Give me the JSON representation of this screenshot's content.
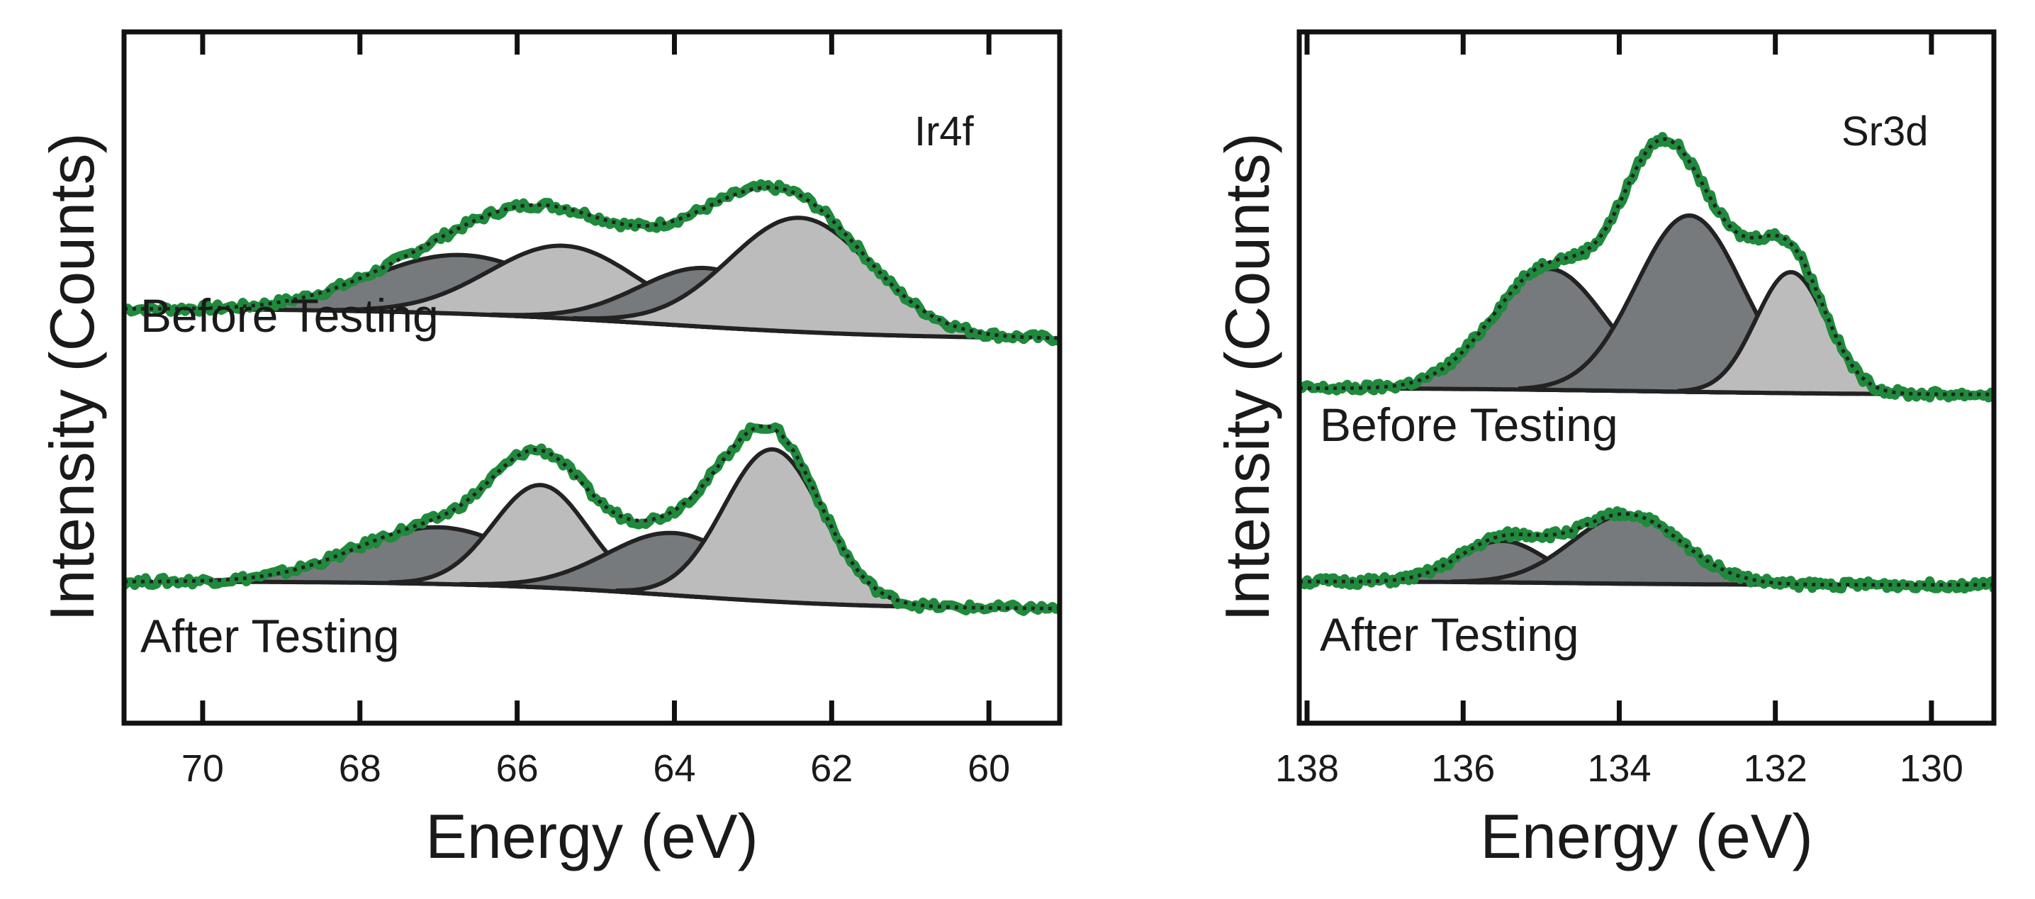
{
  "colors": {
    "data_curve": "#1f8a3c",
    "envelope": "#222222",
    "peak_dark": "#777a7c",
    "peak_light": "#bcbcbc",
    "frame": "#111111"
  },
  "chart_data": [
    {
      "type": "line",
      "title": "Ir4f",
      "xlabel": "Energy (eV)",
      "ylabel": "Intensity (Counts)",
      "xlim": [
        71,
        59.1
      ],
      "x_reversed": true,
      "xticks": [
        70,
        68,
        66,
        64,
        62,
        60
      ],
      "xtick_labels": [
        "70",
        "68",
        "66",
        "64",
        "62",
        "60"
      ],
      "ylim": [
        0,
        1
      ],
      "yticks": false,
      "grid": false,
      "spectra": [
        {
          "label": "Before Testing",
          "baseline_high": 0.6,
          "baseline_low": 0.555,
          "bg_step_center": 64.2,
          "bg_step_width": 1.6,
          "peaks": [
            {
              "center": 66.7,
              "height": 0.085,
              "sigma": 1.15,
              "shade": "dark"
            },
            {
              "center": 65.4,
              "height": 0.105,
              "sigma": 0.95,
              "shade": "light"
            },
            {
              "center": 63.6,
              "height": 0.085,
              "sigma": 0.85,
              "shade": "dark"
            },
            {
              "center": 62.4,
              "height": 0.165,
              "sigma": 0.9,
              "shade": "light"
            }
          ]
        },
        {
          "label": "After Testing",
          "baseline_high": 0.205,
          "baseline_low": 0.165,
          "bg_step_center": 64.0,
          "bg_step_width": 1.3,
          "peaks": [
            {
              "center": 67.0,
              "height": 0.082,
              "sigma": 1.05,
              "shade": "dark"
            },
            {
              "center": 65.7,
              "height": 0.148,
              "sigma": 0.6,
              "shade": "light"
            },
            {
              "center": 64.0,
              "height": 0.09,
              "sigma": 0.85,
              "shade": "dark"
            },
            {
              "center": 62.75,
              "height": 0.22,
              "sigma": 0.62,
              "shade": "light"
            }
          ]
        }
      ]
    },
    {
      "type": "line",
      "title": "Sr3d",
      "xlabel": "Energy (eV)",
      "ylabel": "Intensity (Counts)",
      "xlim": [
        138.1,
        129.2
      ],
      "x_reversed": true,
      "xticks": [
        138,
        136,
        134,
        132,
        130
      ],
      "xtick_labels": [
        "138",
        "136",
        "134",
        "132",
        "130"
      ],
      "ylim": [
        0,
        1
      ],
      "yticks": false,
      "grid": false,
      "spectra": [
        {
          "label": "Before Testing",
          "baseline_high": 0.485,
          "baseline_low": 0.475,
          "bg_step_center": 133.5,
          "bg_step_width": 1.5,
          "peaks": [
            {
              "center": 134.9,
              "height": 0.175,
              "sigma": 0.72,
              "shade": "dark"
            },
            {
              "center": 133.6,
              "height": 0.125,
              "sigma": 0.45,
              "shade": "light"
            },
            {
              "center": 133.1,
              "height": 0.255,
              "sigma": 0.68,
              "shade": "dark"
            },
            {
              "center": 131.8,
              "height": 0.175,
              "sigma": 0.45,
              "shade": "light"
            }
          ]
        },
        {
          "label": "After Testing",
          "baseline_high": 0.205,
          "baseline_low": 0.2,
          "bg_step_center": 134.5,
          "bg_step_width": 1.0,
          "peaks": [
            {
              "center": 135.5,
              "height": 0.06,
              "sigma": 0.55,
              "shade": "dark"
            },
            {
              "center": 133.9,
              "height": 0.1,
              "sigma": 0.7,
              "shade": "dark"
            }
          ]
        }
      ]
    }
  ]
}
